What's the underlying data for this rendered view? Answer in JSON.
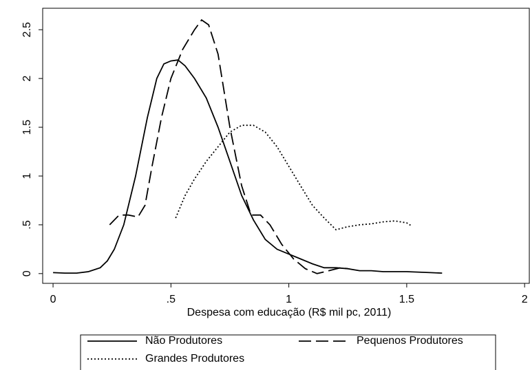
{
  "chart_data": {
    "type": "line",
    "xlabel": "Despesa com educação (R$ mil pc, 2011)",
    "xlim": [
      -0.044,
      2.02
    ],
    "ylim": [
      -0.1,
      2.72
    ],
    "xticks": [
      0,
      {
        "value": 0.5,
        "label": ".5"
      },
      1,
      1.5,
      2
    ],
    "yticks": [
      0,
      {
        "value": 0.5,
        "label": ".5"
      },
      1,
      1.5,
      2,
      2.5
    ],
    "grid": false,
    "legend": "bottom",
    "series": [
      {
        "name": "Não Produtores",
        "color": "#000000",
        "dash": "solid",
        "x": [
          0,
          0.05,
          0.1,
          0.15,
          0.2,
          0.23,
          0.26,
          0.3,
          0.35,
          0.4,
          0.44,
          0.47,
          0.5,
          0.53,
          0.56,
          0.6,
          0.65,
          0.7,
          0.75,
          0.8,
          0.85,
          0.9,
          0.95,
          1.0,
          1.05,
          1.1,
          1.15,
          1.2,
          1.25,
          1.3,
          1.35,
          1.4,
          1.5,
          1.6,
          1.65
        ],
        "values": [
          0.01,
          0.005,
          0.005,
          0.02,
          0.06,
          0.13,
          0.25,
          0.5,
          1.0,
          1.6,
          2.0,
          2.15,
          2.18,
          2.19,
          2.13,
          2.0,
          1.8,
          1.5,
          1.15,
          0.8,
          0.55,
          0.35,
          0.25,
          0.2,
          0.15,
          0.1,
          0.06,
          0.06,
          0.05,
          0.03,
          0.03,
          0.02,
          0.02,
          0.01,
          0.005
        ]
      },
      {
        "name": "Pequenos Produtores",
        "color": "#000000",
        "dash": "long",
        "x": [
          0.24,
          0.28,
          0.32,
          0.36,
          0.39,
          0.42,
          0.46,
          0.5,
          0.55,
          0.6,
          0.63,
          0.66,
          0.7,
          0.75,
          0.8,
          0.84,
          0.88,
          0.92,
          0.97,
          1.02,
          1.07,
          1.12,
          1.17,
          1.22,
          1.25
        ],
        "values": [
          0.5,
          0.6,
          0.6,
          0.58,
          0.7,
          1.1,
          1.6,
          2.0,
          2.3,
          2.5,
          2.6,
          2.55,
          2.25,
          1.5,
          0.9,
          0.6,
          0.6,
          0.5,
          0.3,
          0.15,
          0.05,
          0.0,
          0.03,
          0.06,
          0.05
        ]
      },
      {
        "name": "Grandes Produtores",
        "color": "#000000",
        "dash": "dot",
        "x": [
          0.52,
          0.56,
          0.6,
          0.65,
          0.7,
          0.75,
          0.8,
          0.85,
          0.9,
          0.95,
          1.0,
          1.05,
          1.1,
          1.15,
          1.2,
          1.25,
          1.3,
          1.35,
          1.4,
          1.45,
          1.5,
          1.52
        ],
        "values": [
          0.57,
          0.8,
          0.97,
          1.15,
          1.3,
          1.45,
          1.52,
          1.52,
          1.45,
          1.3,
          1.1,
          0.9,
          0.7,
          0.57,
          0.45,
          0.48,
          0.5,
          0.51,
          0.53,
          0.54,
          0.52,
          0.49
        ]
      }
    ]
  }
}
